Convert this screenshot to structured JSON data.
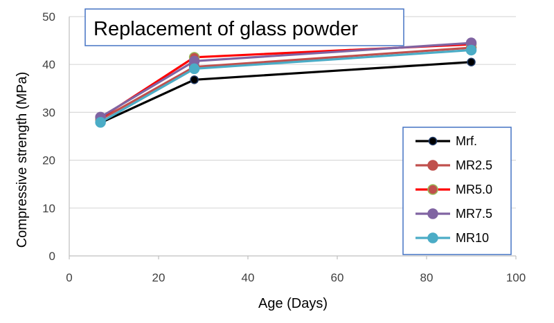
{
  "chart_data": {
    "type": "line",
    "title": "Replacement of glass powder",
    "xlabel": "Age (Days)",
    "ylabel": "Compressive strength (MPa)",
    "xlim": [
      0,
      100
    ],
    "ylim": [
      0,
      50
    ],
    "xticks": [
      0,
      20,
      40,
      60,
      80,
      100
    ],
    "yticks": [
      0,
      10,
      20,
      30,
      40,
      50
    ],
    "grid": "horizontal",
    "legend_position": "right",
    "x": [
      7,
      28,
      90
    ],
    "series": [
      {
        "name": "Mrf.",
        "values": [
          27.8,
          36.8,
          40.5
        ],
        "line_color": "#000000",
        "marker_color": "#000000",
        "marker_edge": "#1f3864"
      },
      {
        "name": "MR2.5",
        "values": [
          28.5,
          39.5,
          43.5
        ],
        "line_color": "#c0504d",
        "marker_color": "#c0504d",
        "marker_edge": "#c0504d"
      },
      {
        "name": "MR5.0",
        "values": [
          28.8,
          41.5,
          44.2
        ],
        "line_color": "#ff0000",
        "marker_color": "#c0504d",
        "marker_edge": "#9bbb59"
      },
      {
        "name": "MR7.5",
        "values": [
          29.0,
          40.7,
          44.5
        ],
        "line_color": "#8064a2",
        "marker_color": "#8064a2",
        "marker_edge": "#8064a2"
      },
      {
        "name": "MR10",
        "values": [
          27.9,
          39.1,
          43.0
        ],
        "line_color": "#4bacc6",
        "marker_color": "#4bacc6",
        "marker_edge": "#4bacc6"
      }
    ]
  }
}
